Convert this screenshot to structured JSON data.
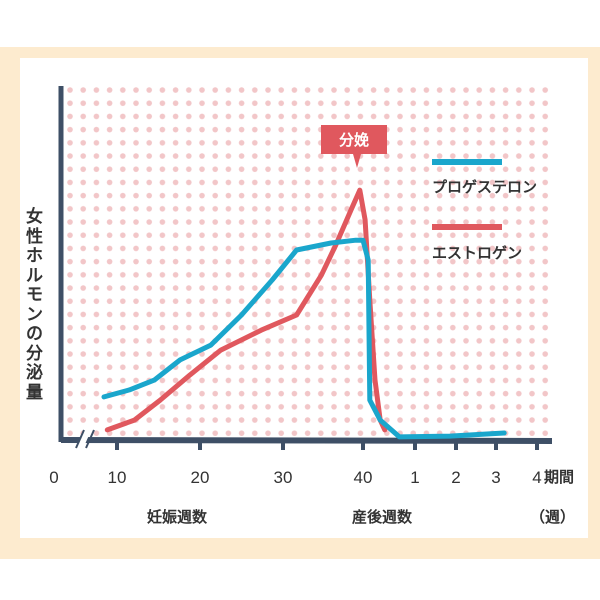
{
  "chart_data": {
    "type": "line",
    "ylabel": "女性ホルモンの分泌量",
    "x_tick_labels": [
      "0",
      "10",
      "20",
      "30",
      "40",
      "1",
      "2",
      "3",
      "4"
    ],
    "x_unit_label": "期間",
    "x_unit_suffix": "（週）",
    "x_section_labels": {
      "pregnancy": "妊娠週数",
      "postpartum": "産後週数"
    },
    "ylim": [
      0,
      100
    ],
    "annotation": "分娩",
    "legend_position": "top-right",
    "series": [
      {
        "name": "プロゲステロン",
        "color": "#1aa6cc",
        "x": [
          8.4,
          11.5,
          14.5,
          17.6,
          21.3,
          25.0,
          28.7,
          31.7,
          36.0,
          39.1,
          40.0,
          40.1,
          40.13,
          40.33,
          40.7,
          41.85,
          43.2
        ],
        "y": [
          12.3,
          14.3,
          17.1,
          22.9,
          27.1,
          35.7,
          45.7,
          54.3,
          56.3,
          57.1,
          57.1,
          51.4,
          11.4,
          5.7,
          0.9,
          1.1,
          2.0
        ]
      },
      {
        "name": "エストロゲン",
        "color": "#e0585e",
        "x": [
          8.8,
          12.1,
          15.2,
          18.8,
          22.5,
          27.4,
          31.7,
          34.8,
          36.6,
          38.5,
          39.6,
          40.04,
          40.13,
          40.23,
          40.33,
          40.42
        ],
        "y": [
          2.9,
          5.7,
          11.4,
          18.6,
          25.7,
          31.4,
          35.7,
          47.1,
          55.7,
          65.7,
          71.4,
          62.9,
          40,
          17.1,
          5.7,
          2.9
        ]
      }
    ]
  }
}
